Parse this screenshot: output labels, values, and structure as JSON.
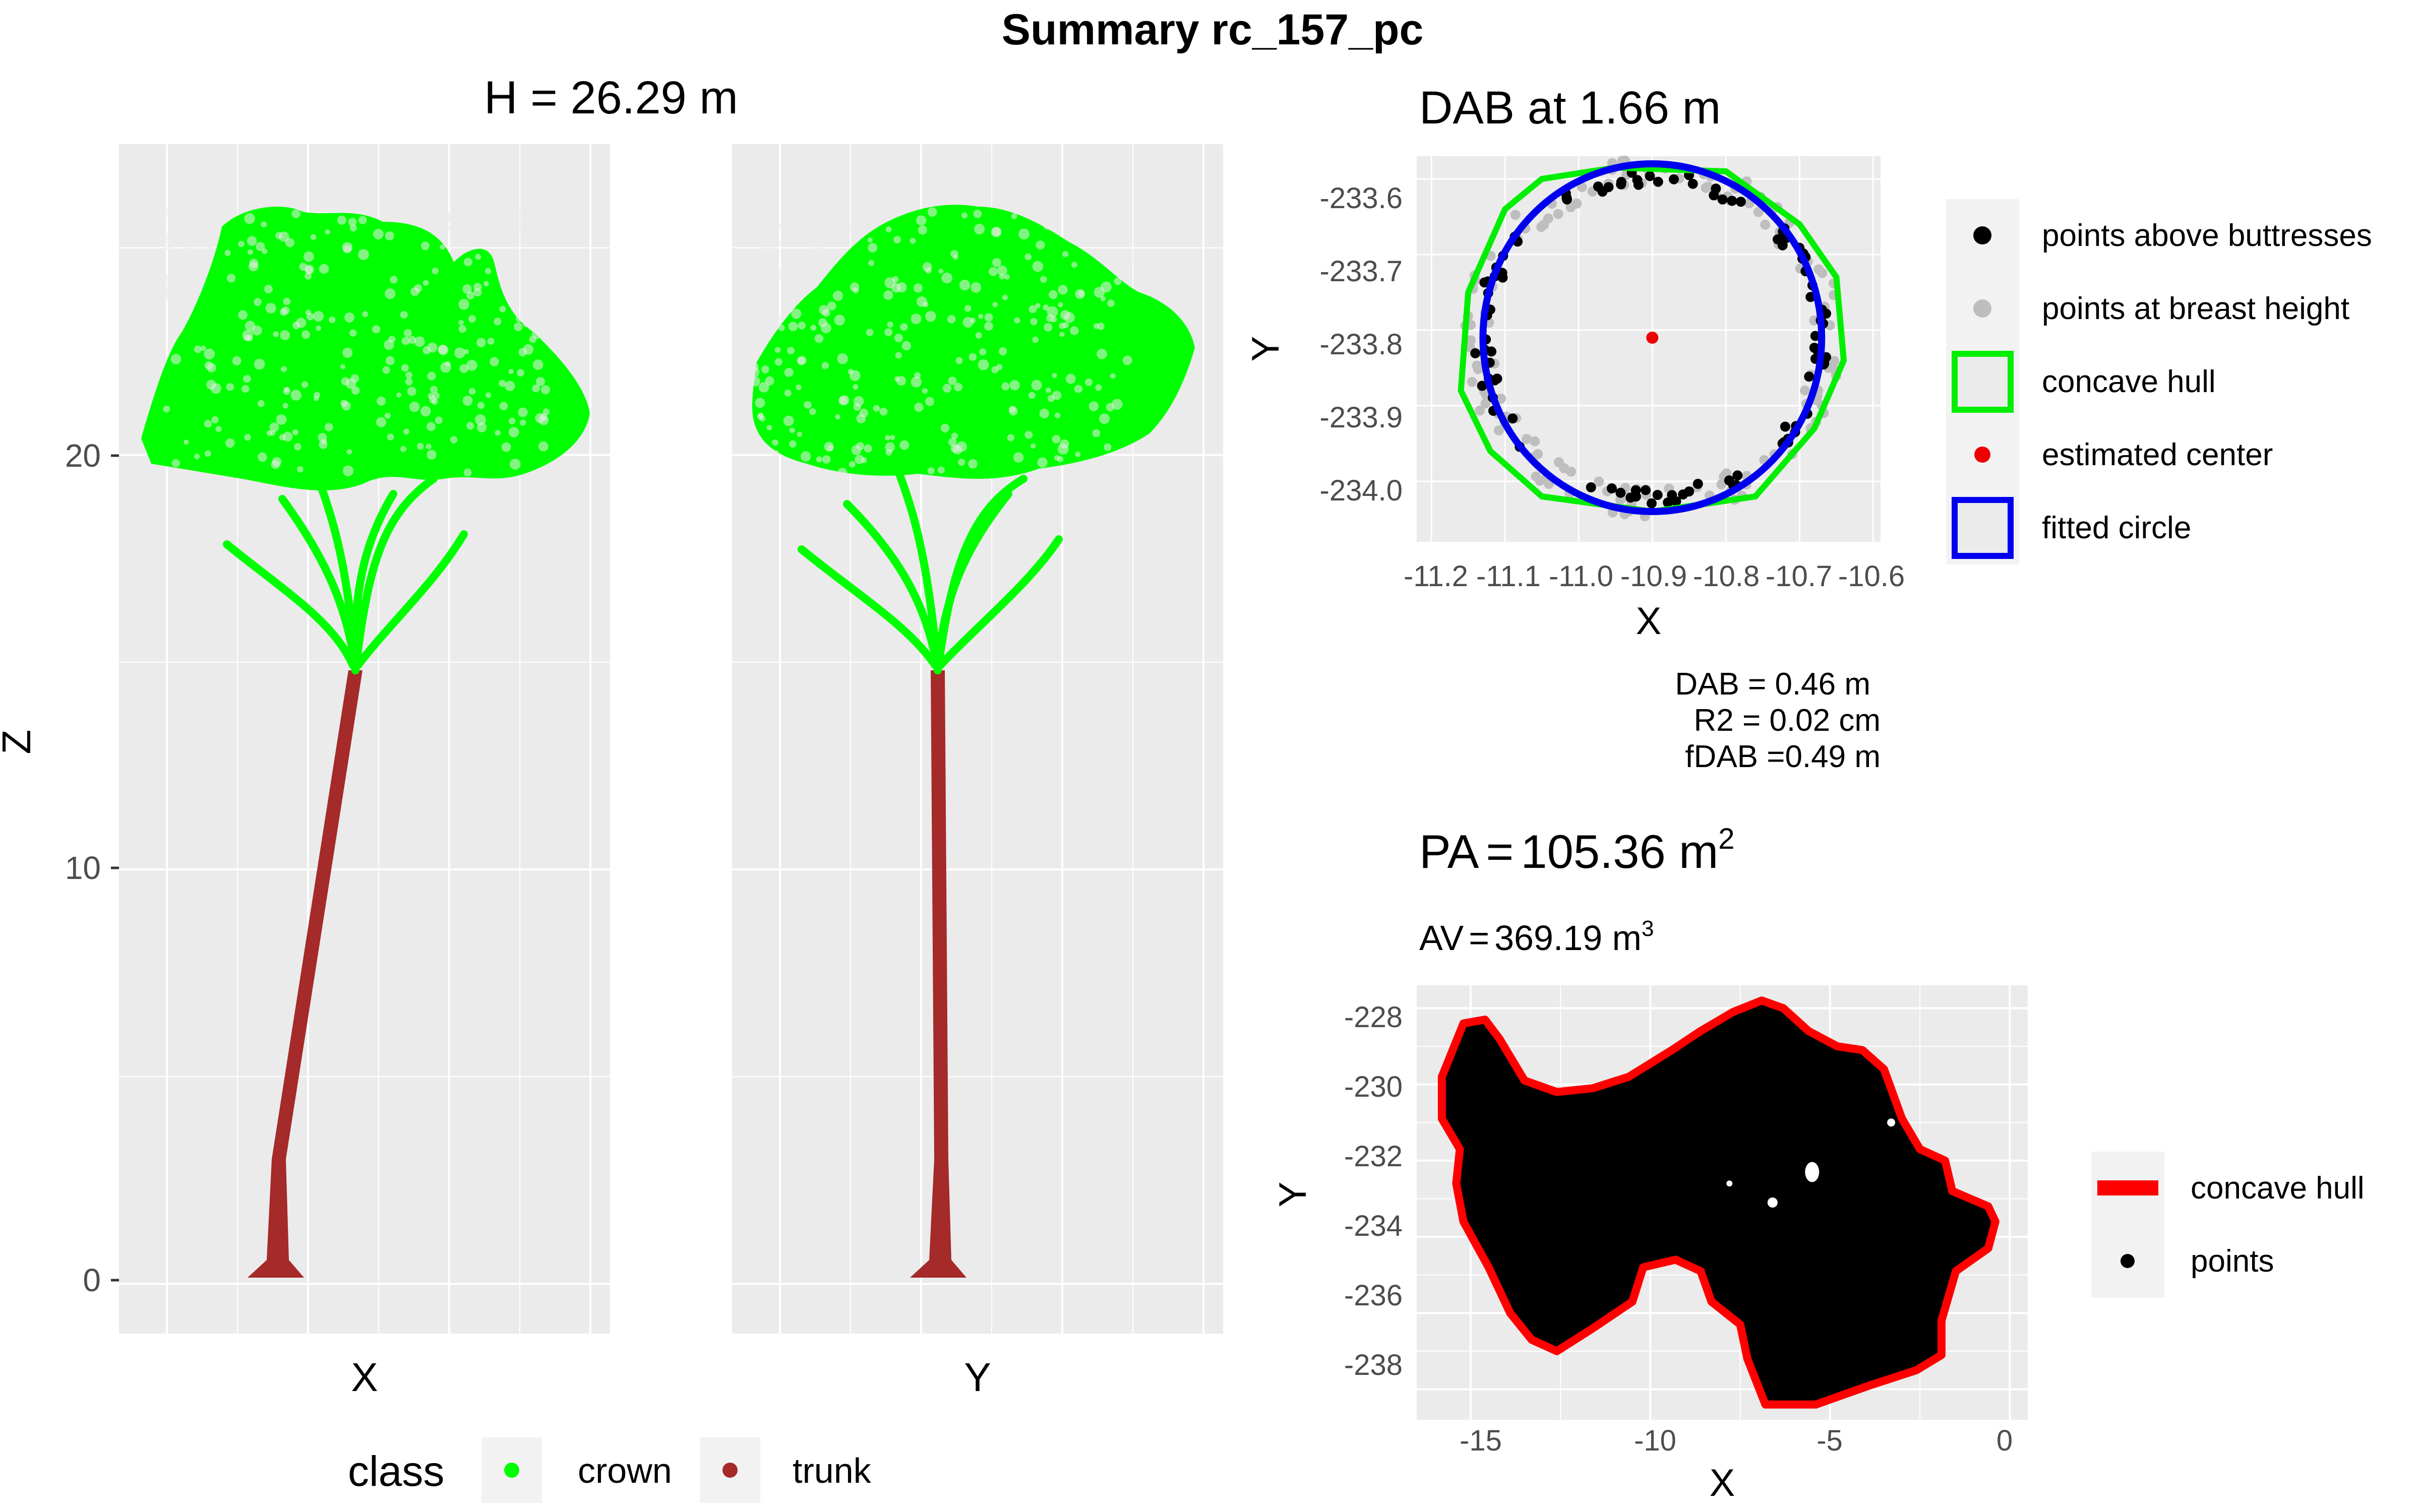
{
  "figure": {
    "title": "Summary rc_157_pc",
    "colors": {
      "panel_bg": "#EBEBEB",
      "grid": "#FFFFFF",
      "crown": "#00FF00",
      "trunk": "#A52A2A",
      "hull_green": "#00EE00",
      "circle_blue": "#0000EE",
      "center_red": "#EE0000",
      "hull_red": "#FF0000",
      "grey_points": "#BEBEBE",
      "black_points": "#000000"
    }
  },
  "height_panel": {
    "title": "H = 26.29 m",
    "ylabel": "Z",
    "xlabel_left": "X",
    "xlabel_right": "Y",
    "y_ticks": [
      "0",
      "10",
      "20"
    ],
    "legend_title": "class",
    "legend_items": [
      "crown",
      "trunk"
    ]
  },
  "dab_panel": {
    "title": "DAB at 1.66 m",
    "xlabel": "X",
    "ylabel": "Y",
    "x_ticks": [
      "-11.2",
      "-11.1",
      "-11.0",
      "-10.9",
      "-10.8",
      "-10.7",
      "-10.6"
    ],
    "y_ticks": [
      "-233.6",
      "-233.7",
      "-233.8",
      "-233.9",
      "-234.0"
    ],
    "legend_items": [
      "points above buttresses",
      "points at breast height",
      "concave hull",
      "estimated center",
      "fitted circle"
    ],
    "stats": [
      "DAB = 0.46 m",
      "R2 = 0.02 cm",
      "fDAB =0.49 m"
    ]
  },
  "pa_panel": {
    "title_prefix": "PA",
    "title_value": "105.36 m",
    "title_sup": "2",
    "subtitle_prefix": "AV",
    "subtitle_value": "369.19 m",
    "subtitle_sup": "3",
    "xlabel": "X",
    "ylabel": "Y",
    "x_ticks": [
      "-15",
      "-10",
      "-5",
      "0"
    ],
    "y_ticks": [
      "-228",
      "-230",
      "-232",
      "-234",
      "-236",
      "-238"
    ],
    "legend_items": [
      "concave hull",
      "points"
    ]
  },
  "chart_data": [
    {
      "type": "scatter",
      "title": "H = 26.29 m",
      "xlabel": "X",
      "ylabel": "Z",
      "ylim": [
        -1.2,
        27.5
      ],
      "series": [
        {
          "name": "crown",
          "z_range": [
            14.7,
            26.29
          ]
        },
        {
          "name": "trunk",
          "z_range": [
            0,
            14.7
          ]
        }
      ]
    },
    {
      "type": "scatter",
      "title": "",
      "xlabel": "Y",
      "ylabel": "Z",
      "ylim": [
        -1.2,
        27.5
      ],
      "series": [
        {
          "name": "crown",
          "z_range": [
            14.7,
            26.29
          ]
        },
        {
          "name": "trunk",
          "z_range": [
            0,
            14.7
          ]
        }
      ]
    },
    {
      "type": "scatter",
      "title": "DAB at 1.66 m",
      "xlabel": "X",
      "ylabel": "Y",
      "xlim": [
        -11.22,
        -10.59
      ],
      "ylim": [
        -234.08,
        -233.57
      ],
      "estimated_center": {
        "x": -10.9,
        "y": -233.81
      },
      "fitted_circle": {
        "x": -10.9,
        "y": -233.81,
        "radius": 0.23
      },
      "concave_hull": [
        [
          -10.95,
          -233.585
        ],
        [
          -10.8,
          -233.59
        ],
        [
          -10.7,
          -233.66
        ],
        [
          -10.65,
          -233.73
        ],
        [
          -10.64,
          -233.84
        ],
        [
          -10.68,
          -233.93
        ],
        [
          -10.76,
          -234.02
        ],
        [
          -10.9,
          -234.04
        ],
        [
          -11.05,
          -234.02
        ],
        [
          -11.12,
          -233.96
        ],
        [
          -11.16,
          -233.88
        ],
        [
          -11.15,
          -233.75
        ],
        [
          -11.1,
          -233.64
        ],
        [
          -11.05,
          -233.6
        ]
      ],
      "stats": {
        "DAB_m": 0.46,
        "R2_cm": 0.02,
        "fDAB_m": 0.49
      }
    },
    {
      "type": "area",
      "title": "PA = 105.36 m2",
      "subtitle": "AV = 369.19 m3",
      "xlabel": "X",
      "ylabel": "Y",
      "xlim": [
        -16.5,
        0.5
      ],
      "ylim": [
        -238.8,
        -227.4
      ],
      "projected_area_m2": 105.36,
      "volume_m3": 369.19,
      "concave_hull": [
        [
          -15.8,
          -229.8
        ],
        [
          -15.2,
          -228.4
        ],
        [
          -14.6,
          -228.3
        ],
        [
          -14.2,
          -228.8
        ],
        [
          -13.5,
          -229.9
        ],
        [
          -12.6,
          -230.2
        ],
        [
          -11.6,
          -230.1
        ],
        [
          -10.6,
          -229.8
        ],
        [
          -9.4,
          -229.1
        ],
        [
          -8.6,
          -228.6
        ],
        [
          -7.7,
          -228.1
        ],
        [
          -6.9,
          -227.8
        ],
        [
          -6.3,
          -228.0
        ],
        [
          -5.6,
          -228.6
        ],
        [
          -4.8,
          -229.0
        ],
        [
          -4.1,
          -229.1
        ],
        [
          -3.5,
          -229.6
        ],
        [
          -3.0,
          -230.9
        ],
        [
          -2.5,
          -231.7
        ],
        [
          -1.8,
          -232.0
        ],
        [
          -1.6,
          -232.8
        ],
        [
          -0.6,
          -233.2
        ],
        [
          -0.4,
          -233.6
        ],
        [
          -0.6,
          -234.3
        ],
        [
          -1.5,
          -234.9
        ],
        [
          -1.9,
          -236.2
        ],
        [
          -1.9,
          -237.1
        ],
        [
          -2.6,
          -237.5
        ],
        [
          -3.9,
          -237.9
        ],
        [
          -5.4,
          -238.4
        ],
        [
          -6.8,
          -238.4
        ],
        [
          -7.3,
          -237.2
        ],
        [
          -7.5,
          -236.3
        ],
        [
          -8.3,
          -235.7
        ],
        [
          -8.6,
          -234.9
        ],
        [
          -9.3,
          -234.6
        ],
        [
          -10.2,
          -234.8
        ],
        [
          -10.5,
          -235.7
        ],
        [
          -11.6,
          -236.4
        ],
        [
          -12.6,
          -237.0
        ],
        [
          -13.3,
          -236.7
        ],
        [
          -13.9,
          -236.0
        ],
        [
          -14.5,
          -234.8
        ],
        [
          -15.2,
          -233.6
        ],
        [
          -15.4,
          -232.6
        ],
        [
          -15.3,
          -231.7
        ],
        [
          -15.8,
          -230.9
        ],
        [
          -15.8,
          -229.8
        ]
      ]
    }
  ]
}
